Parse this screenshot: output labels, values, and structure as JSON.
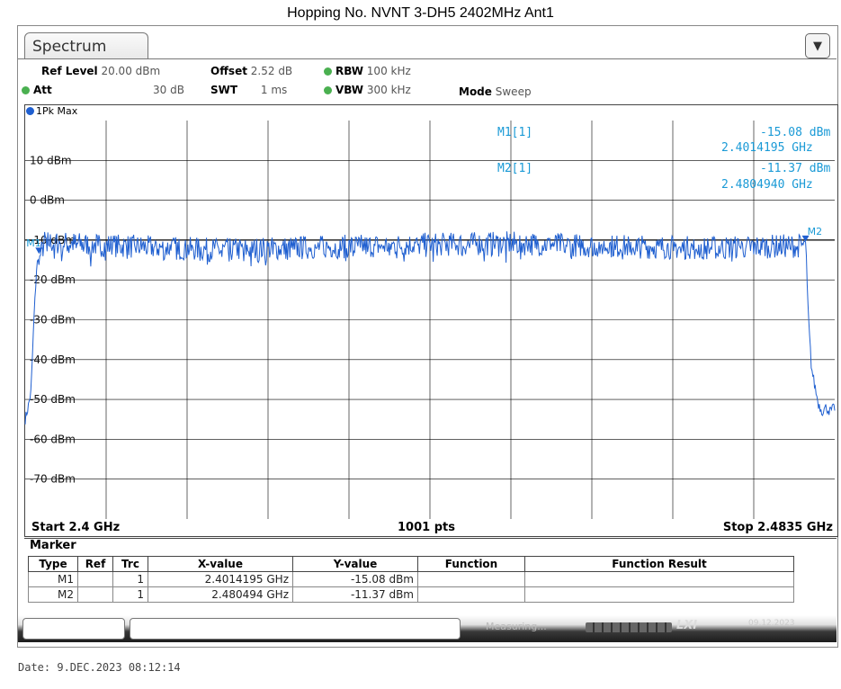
{
  "title": "Hopping No. NVNT 3-DH5 2402MHz Ant1",
  "tab": {
    "label": "Spectrum"
  },
  "settings": {
    "ref_level_label": "Ref Level",
    "ref_level_value": "20.00 dBm",
    "offset_label": "Offset",
    "offset_value": "2.52 dB",
    "rbw_label": "RBW",
    "rbw_value": "100 kHz",
    "att_label": "Att",
    "att_value": "30 dB",
    "swt_label": "SWT",
    "swt_value": "1 ms",
    "vbw_label": "VBW",
    "vbw_value": "300 kHz",
    "mode_label": "Mode",
    "mode_value": "Sweep"
  },
  "trace_label": "1Pk Max",
  "marker_readout": {
    "m1_name": "M1[1]",
    "m1_level": "-15.08 dBm",
    "m1_freq": "2.4014195 GHz",
    "m2_name": "M2[1]",
    "m2_level": "-11.37 dBm",
    "m2_freq": "2.4804940 GHz"
  },
  "axis": {
    "start": "Start 2.4 GHz",
    "points": "1001 pts",
    "stop": "Stop 2.4835 GHz"
  },
  "marker_table": {
    "title": "Marker",
    "headers": [
      "Type",
      "Ref",
      "Trc",
      "X-value",
      "Y-value",
      "Function",
      "Function Result"
    ],
    "rows": [
      [
        "M1",
        "",
        "1",
        "2.4014195 GHz",
        "-15.08 dBm",
        "",
        ""
      ],
      [
        "M2",
        "",
        "1",
        "2.480494 GHz",
        "-11.37 dBm",
        "",
        ""
      ]
    ]
  },
  "status": {
    "measuring": "Measuring...",
    "lxi": "LXI",
    "date": "09.12.2023"
  },
  "footer_date": "Date: 9.DEC.2023  08:12:14",
  "colors": {
    "trace": "#1f5fd0",
    "marker_text": "#1a9ad6",
    "grid": "#000000"
  },
  "chart_data": {
    "type": "line",
    "title": "",
    "xlabel": "",
    "ylabel": "",
    "x_start_ghz": 2.4,
    "x_stop_ghz": 2.4835,
    "ylim": [
      -80,
      20
    ],
    "y_ticks": [
      "10 dBm",
      "0 dBm",
      "-10 dBm",
      "-20 dBm",
      "-30 dBm",
      "-40 dBm",
      "-50 dBm",
      "-60 dBm",
      "-70 dBm"
    ],
    "y_tick_values": [
      10,
      0,
      -10,
      -20,
      -30,
      -40,
      -50,
      -60,
      -70
    ],
    "reference_line_dbm": -10,
    "series": [
      {
        "x": [
          2.4,
          2.4003,
          2.4006,
          2.4009,
          2.4012,
          2.40142,
          2.402,
          2.41,
          2.42,
          2.43,
          2.44,
          2.45,
          2.46,
          2.47,
          2.48,
          2.48049,
          2.4808,
          2.4811,
          2.4814,
          2.4818,
          2.4822,
          2.4826,
          2.483,
          2.4835
        ],
        "values": [
          -55,
          -52,
          -48,
          -30,
          -16,
          -15.08,
          -10.5,
          -11.5,
          -12.5,
          -11.8,
          -11.2,
          -10.8,
          -11.5,
          -12.0,
          -11.4,
          -11.37,
          -30,
          -42,
          -46,
          -51,
          -53,
          -52,
          -53,
          -52
        ]
      }
    ],
    "markers": [
      {
        "name": "M1",
        "x": 2.4014195,
        "y": -15.08
      },
      {
        "name": "M2",
        "x": 2.480494,
        "y": -11.37
      }
    ]
  }
}
